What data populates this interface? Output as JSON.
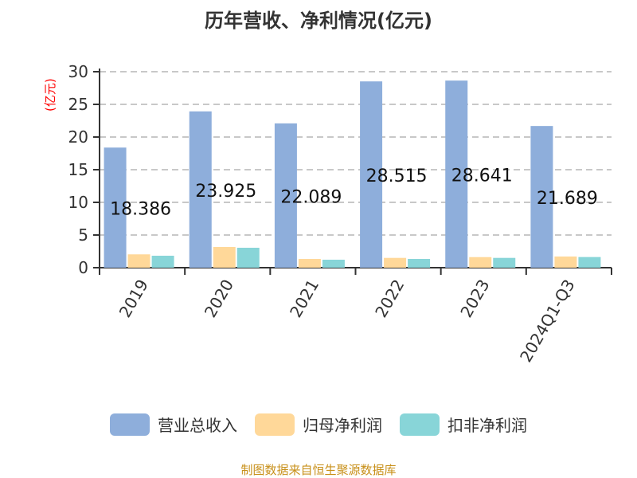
{
  "chart_data": {
    "type": "bar",
    "title": "历年营收、净利情况(亿元)",
    "ylabel": "(亿元)",
    "ylim": [
      0,
      30
    ],
    "yticks": [
      0,
      5,
      10,
      15,
      20,
      25,
      30
    ],
    "grid": true,
    "legend_position": "bottom",
    "categories": [
      "2019",
      "2020",
      "2021",
      "2022",
      "2023",
      "2024Q1-Q3"
    ],
    "series": [
      {
        "name": "营业总收入",
        "color": "#8eaedb",
        "values": [
          18.386,
          23.925,
          22.089,
          28.515,
          28.641,
          21.689
        ],
        "labels": [
          "18.386",
          "23.925",
          "22.089",
          "28.515",
          "28.641",
          "21.689"
        ]
      },
      {
        "name": "归母净利润",
        "color": "#ffd899",
        "values": [
          2.04,
          3.17,
          1.34,
          1.5,
          1.62,
          1.71
        ]
      },
      {
        "name": "扣非净利润",
        "color": "#88d5d8",
        "values": [
          1.83,
          3.05,
          1.22,
          1.34,
          1.5,
          1.63
        ]
      }
    ]
  },
  "source": "制图数据来自恒生聚源数据库"
}
